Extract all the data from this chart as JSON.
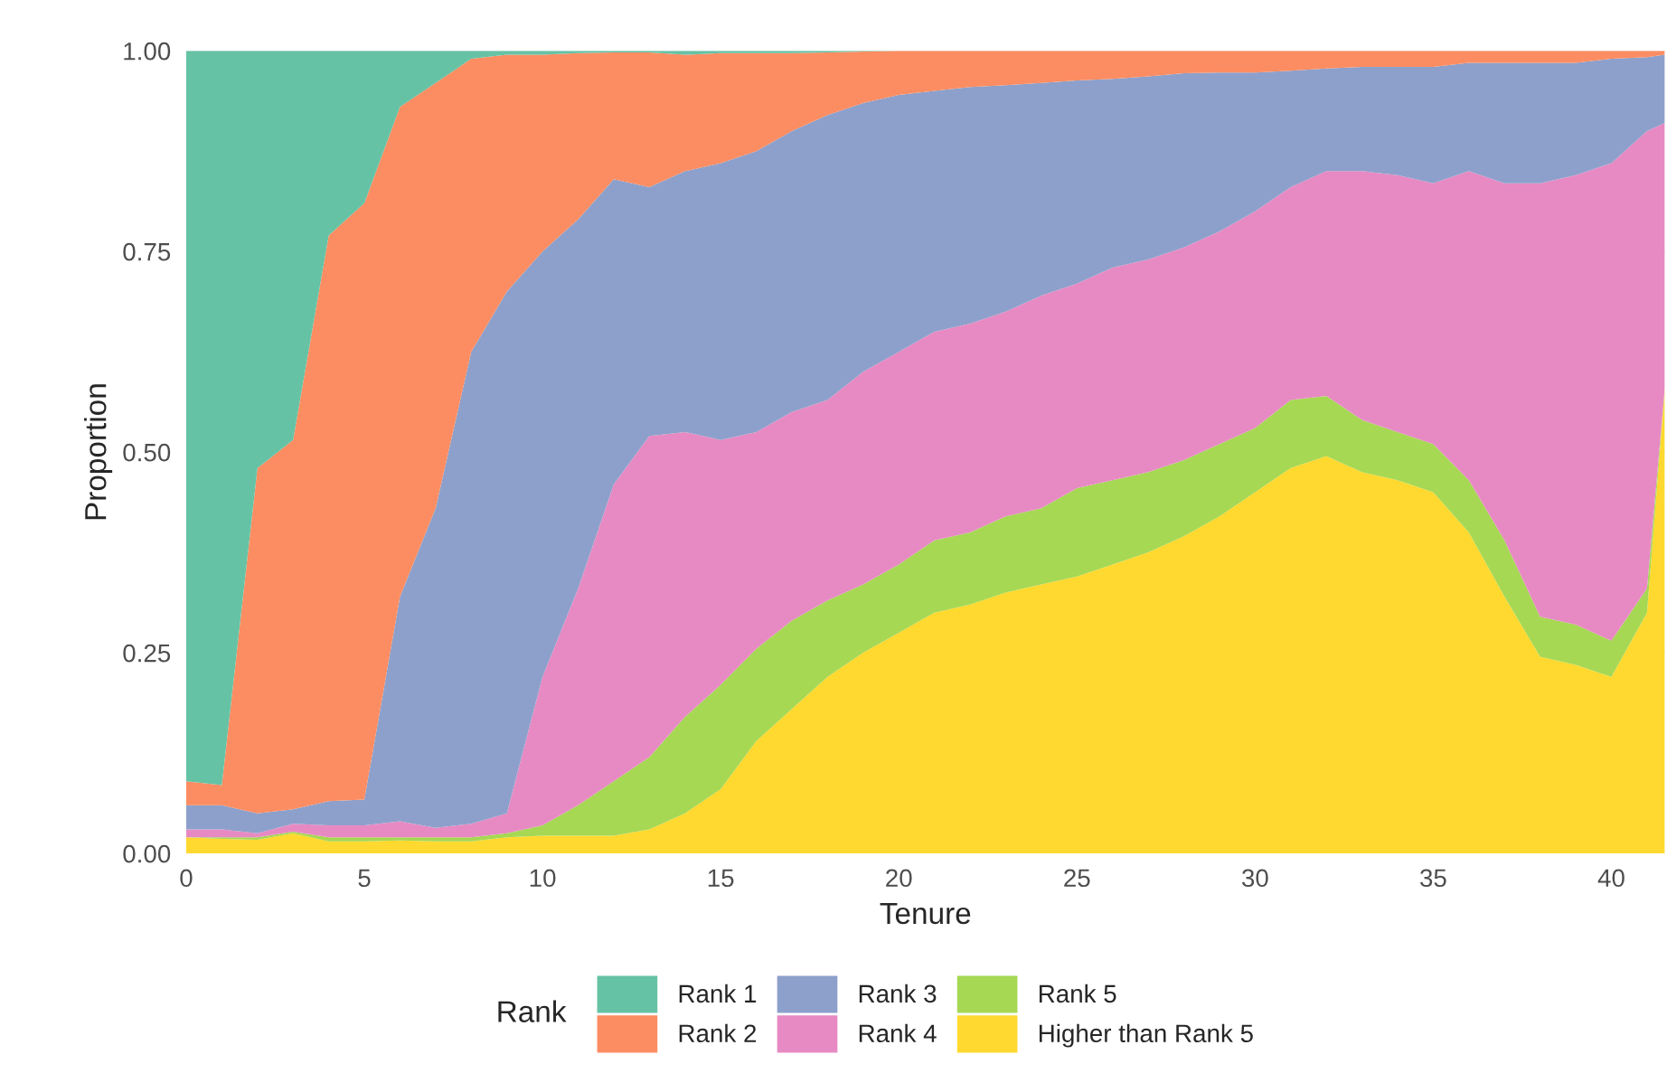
{
  "chart_data": {
    "type": "area",
    "stacked": true,
    "xlabel": "Tenure",
    "ylabel": "Proportion",
    "legend_title": "Rank",
    "legend": "bottom",
    "grid": true,
    "x": [
      0,
      1,
      2,
      3,
      4,
      5,
      6,
      7,
      8,
      9,
      10,
      11,
      12,
      13,
      14,
      15,
      16,
      17,
      18,
      19,
      20,
      21,
      22,
      23,
      24,
      25,
      26,
      27,
      28,
      29,
      30,
      31,
      32,
      33,
      34,
      35,
      36,
      37,
      38,
      39,
      40,
      41,
      41.5
    ],
    "xlim": [
      0,
      41.5
    ],
    "xticks": [
      0,
      5,
      10,
      15,
      20,
      25,
      30,
      35,
      40
    ],
    "ylim": [
      0,
      1
    ],
    "yticks": [
      {
        "value": 0,
        "label": "0.00"
      },
      {
        "value": 0.25,
        "label": "0.25"
      },
      {
        "value": 0.5,
        "label": "0.50"
      },
      {
        "value": 0.75,
        "label": "0.75"
      },
      {
        "value": 1,
        "label": "1.00"
      }
    ],
    "series": [
      {
        "name": "Higher than Rank 5",
        "color": "#ffd92f",
        "values": [
          0.02,
          0.018,
          0.017,
          0.025,
          0.015,
          0.015,
          0.016,
          0.015,
          0.015,
          0.02,
          0.022,
          0.022,
          0.022,
          0.03,
          0.05,
          0.08,
          0.14,
          0.18,
          0.22,
          0.25,
          0.275,
          0.3,
          0.31,
          0.325,
          0.335,
          0.345,
          0.36,
          0.375,
          0.395,
          0.42,
          0.45,
          0.48,
          0.495,
          0.475,
          0.465,
          0.45,
          0.4,
          0.32,
          0.245,
          0.235,
          0.22,
          0.3,
          0.58
        ]
      },
      {
        "name": "Rank 5",
        "color": "#a6d854",
        "values": [
          0.0,
          0.002,
          0.003,
          0.002,
          0.005,
          0.005,
          0.004,
          0.005,
          0.005,
          0.005,
          0.013,
          0.038,
          0.068,
          0.09,
          0.12,
          0.13,
          0.115,
          0.11,
          0.095,
          0.085,
          0.085,
          0.09,
          0.09,
          0.095,
          0.095,
          0.11,
          0.105,
          0.1,
          0.095,
          0.09,
          0.08,
          0.085,
          0.075,
          0.065,
          0.06,
          0.06,
          0.065,
          0.07,
          0.05,
          0.05,
          0.045,
          0.03,
          0.0
        ]
      },
      {
        "name": "Rank 4",
        "color": "#e78ac3",
        "values": [
          0.01,
          0.01,
          0.005,
          0.01,
          0.015,
          0.015,
          0.02,
          0.012,
          0.017,
          0.025,
          0.185,
          0.27,
          0.37,
          0.4,
          0.355,
          0.305,
          0.27,
          0.26,
          0.25,
          0.265,
          0.265,
          0.26,
          0.26,
          0.255,
          0.265,
          0.255,
          0.265,
          0.265,
          0.265,
          0.265,
          0.27,
          0.265,
          0.28,
          0.31,
          0.32,
          0.325,
          0.385,
          0.445,
          0.54,
          0.56,
          0.595,
          0.57,
          0.33
        ]
      },
      {
        "name": "Rank 3",
        "color": "#8da0cb",
        "values": [
          0.03,
          0.03,
          0.025,
          0.018,
          0.03,
          0.032,
          0.28,
          0.398,
          0.588,
          0.65,
          0.53,
          0.46,
          0.38,
          0.31,
          0.325,
          0.345,
          0.35,
          0.35,
          0.355,
          0.335,
          0.32,
          0.3,
          0.295,
          0.282,
          0.265,
          0.253,
          0.235,
          0.228,
          0.217,
          0.198,
          0.173,
          0.145,
          0.128,
          0.13,
          0.135,
          0.145,
          0.135,
          0.15,
          0.15,
          0.14,
          0.13,
          0.092,
          0.085
        ]
      },
      {
        "name": "Rank 2",
        "color": "#fc8d62",
        "values": [
          0.03,
          0.025,
          0.43,
          0.46,
          0.705,
          0.743,
          0.61,
          0.53,
          0.365,
          0.295,
          0.245,
          0.207,
          0.158,
          0.168,
          0.145,
          0.137,
          0.122,
          0.097,
          0.078,
          0.064,
          0.055,
          0.05,
          0.045,
          0.043,
          0.04,
          0.037,
          0.035,
          0.032,
          0.028,
          0.027,
          0.027,
          0.025,
          0.022,
          0.02,
          0.02,
          0.02,
          0.015,
          0.015,
          0.015,
          0.015,
          0.01,
          0.008,
          0.005
        ]
      },
      {
        "name": "Rank 1",
        "color": "#66c2a5",
        "values": [
          0.91,
          0.915,
          0.52,
          0.485,
          0.23,
          0.19,
          0.07,
          0.04,
          0.01,
          0.005,
          0.005,
          0.003,
          0.002,
          0.002,
          0.005,
          0.003,
          0.003,
          0.003,
          0.002,
          0.001,
          0,
          0,
          0,
          0,
          0,
          0,
          0,
          0,
          0,
          0,
          0,
          0,
          0,
          0,
          0,
          0,
          0,
          0,
          0,
          0,
          0,
          0,
          0
        ]
      }
    ]
  }
}
